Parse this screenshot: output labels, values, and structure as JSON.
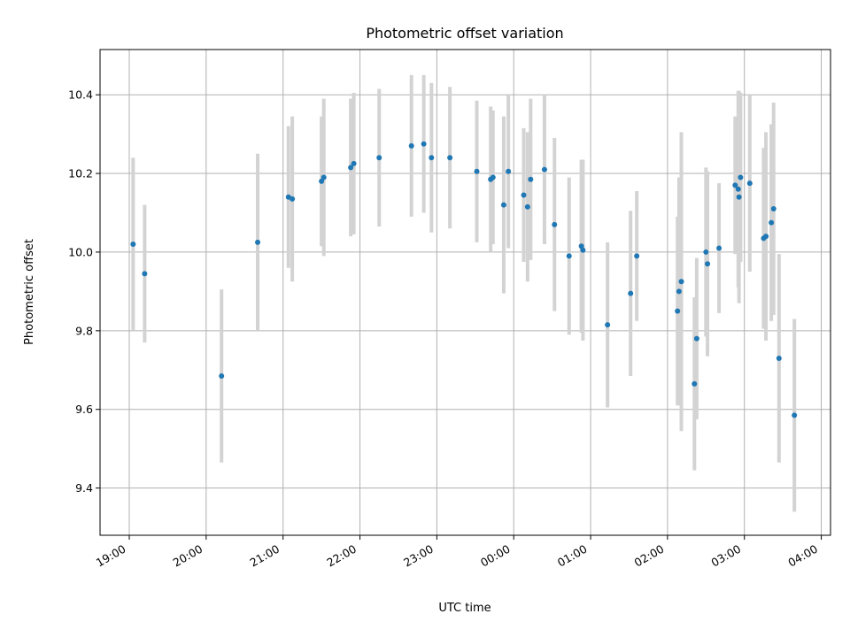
{
  "chart_data": {
    "type": "scatter",
    "title": "Photometric offset variation",
    "xlabel": "UTC time",
    "ylabel": "Photometric offset",
    "x_tick_labels": [
      "19:00",
      "20:00",
      "21:00",
      "22:00",
      "23:00",
      "00:00",
      "01:00",
      "02:00",
      "03:00",
      "04:00"
    ],
    "y_tick_labels": [
      "9.4",
      "9.6",
      "9.8",
      "10.0",
      "10.2",
      "10.4"
    ],
    "y_ticks": [
      9.4,
      9.6,
      9.8,
      10.0,
      10.2,
      10.4
    ],
    "xlim_hours": [
      18.62,
      28.12
    ],
    "ylim": [
      9.28,
      10.515
    ],
    "grid": true,
    "colors": {
      "point": "#1f77b4",
      "errorbar": "#d3d3d3",
      "grid": "#b0b0b0"
    },
    "series": [
      {
        "x_hours": [
          19.05,
          19.2,
          20.2,
          20.67,
          21.07,
          21.12,
          21.5,
          21.53,
          21.88,
          21.92,
          22.25,
          22.67,
          22.83,
          22.93,
          23.17,
          23.52,
          23.7,
          23.73,
          23.87,
          23.93,
          24.13,
          24.18,
          24.22,
          24.4,
          24.53,
          24.72,
          24.88,
          24.9,
          25.22,
          25.52,
          25.6,
          26.13,
          26.15,
          26.18,
          26.35,
          26.38,
          26.5,
          26.52,
          26.67,
          26.88,
          26.92,
          26.93,
          26.95,
          27.07,
          27.25,
          27.28,
          27.35,
          27.38,
          27.45,
          27.65
        ],
        "y": [
          10.02,
          9.945,
          9.685,
          10.025,
          10.14,
          10.135,
          10.18,
          10.19,
          10.215,
          10.225,
          10.24,
          10.27,
          10.275,
          10.24,
          10.24,
          10.205,
          10.185,
          10.19,
          10.12,
          10.205,
          10.145,
          10.115,
          10.185,
          10.21,
          10.07,
          9.99,
          10.015,
          10.005,
          9.815,
          9.895,
          9.99,
          9.85,
          9.9,
          9.925,
          9.665,
          9.78,
          10.0,
          9.97,
          10.01,
          10.17,
          10.16,
          10.14,
          10.19,
          10.175,
          10.035,
          10.04,
          10.075,
          10.11,
          9.73,
          9.585
        ],
        "err": [
          0.22,
          0.175,
          0.22,
          0.225,
          0.18,
          0.21,
          0.165,
          0.2,
          0.175,
          0.18,
          0.175,
          0.18,
          0.175,
          0.19,
          0.18,
          0.18,
          0.185,
          0.17,
          0.225,
          0.195,
          0.17,
          0.19,
          0.205,
          0.19,
          0.22,
          0.2,
          0.22,
          0.23,
          0.21,
          0.21,
          0.165,
          0.24,
          0.29,
          0.38,
          0.22,
          0.205,
          0.215,
          0.235,
          0.165,
          0.175,
          0.25,
          0.27,
          0.215,
          0.225,
          0.23,
          0.265,
          0.25,
          0.27,
          0.265,
          0.245
        ]
      }
    ]
  }
}
